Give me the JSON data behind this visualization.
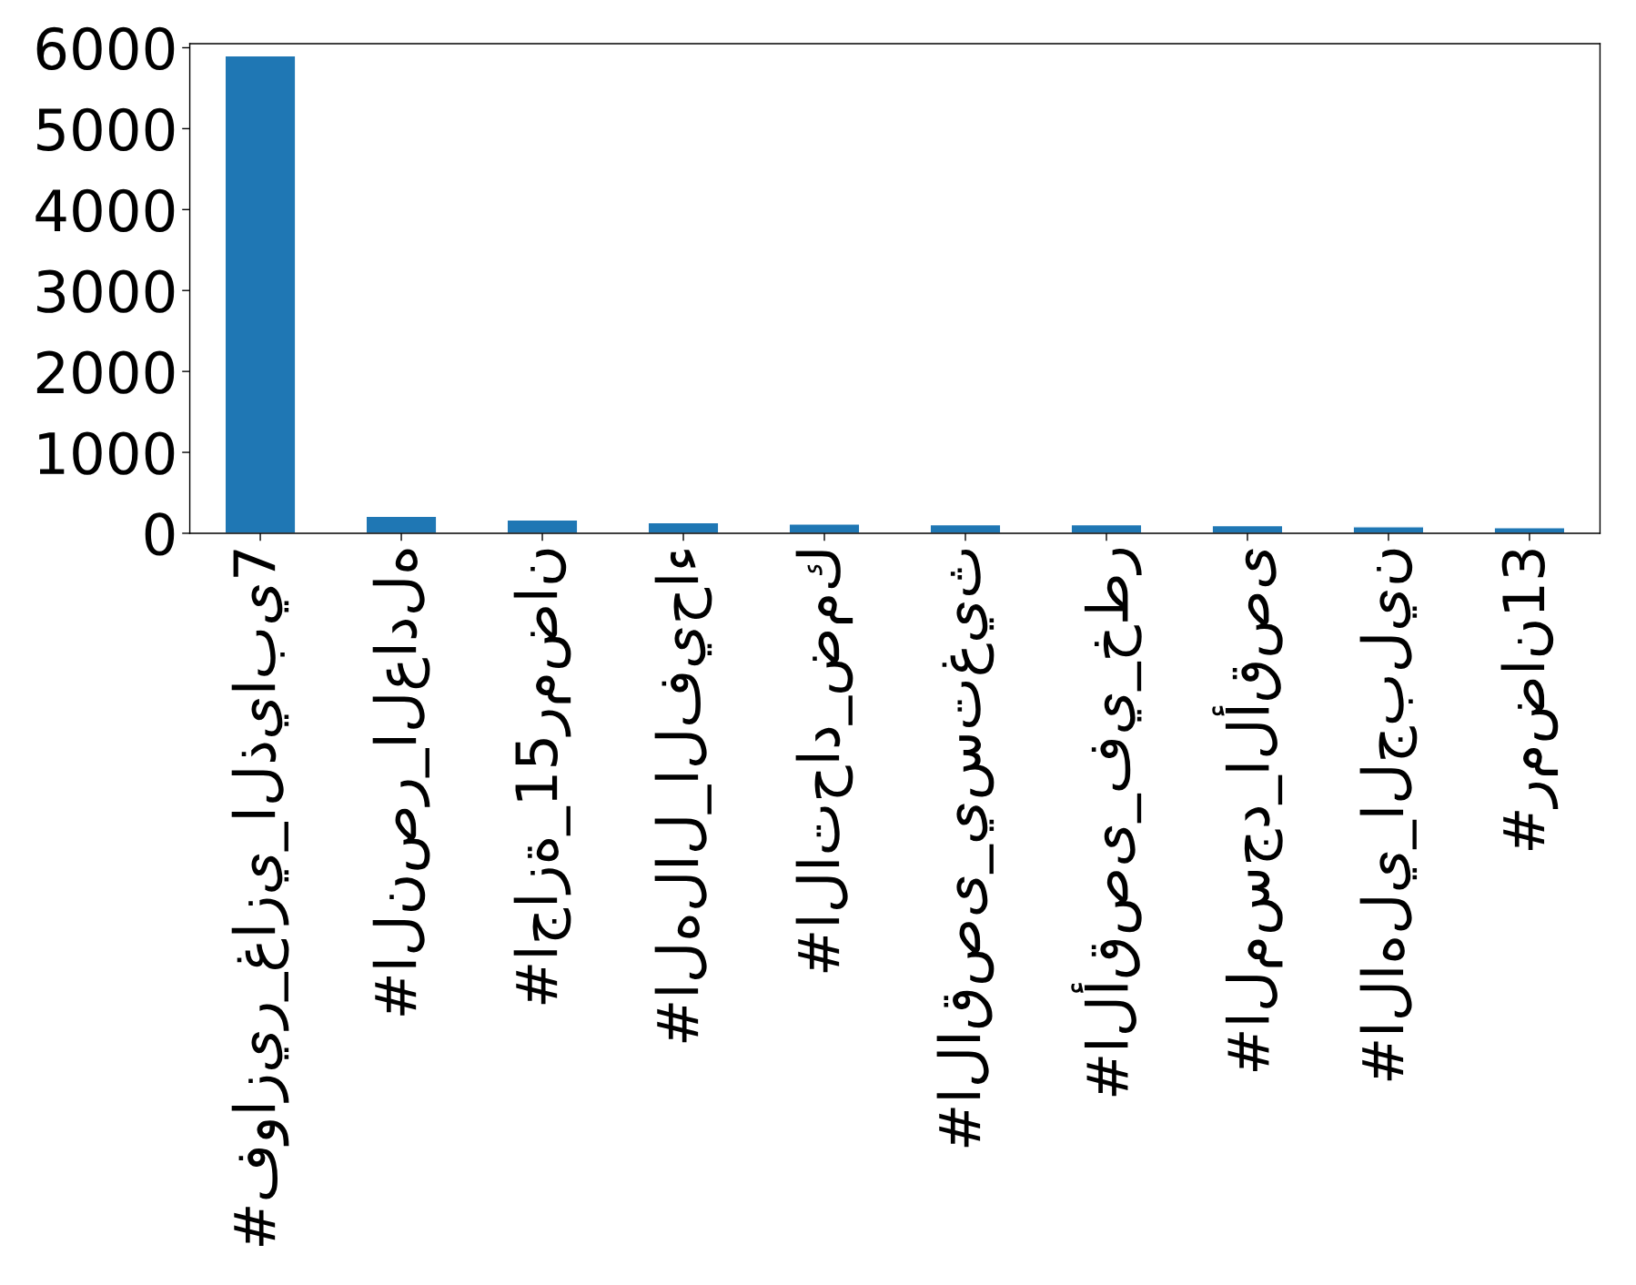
{
  "chart_data": {
    "type": "bar",
    "categories": [
      "#فوازير_غازي_الذيابي7",
      "#النصر_العادله",
      "#اجازة_15رمضان",
      "#الهلال_الفيحاء",
      "#الاتحاد_ضمك",
      "#الاقصى_يستغيث",
      "#الأقصى_في_خطر",
      "#المسجد_الأقصى",
      "#الاهلي_الجبلين",
      "#رمضان13"
    ],
    "values": [
      5900,
      210,
      165,
      130,
      115,
      105,
      105,
      95,
      80,
      70
    ],
    "color": "#1f77b4",
    "ylim": [
      0,
      6050
    ],
    "yticks": [
      0,
      1000,
      2000,
      3000,
      4000,
      5000,
      6000
    ],
    "grid": false
  }
}
